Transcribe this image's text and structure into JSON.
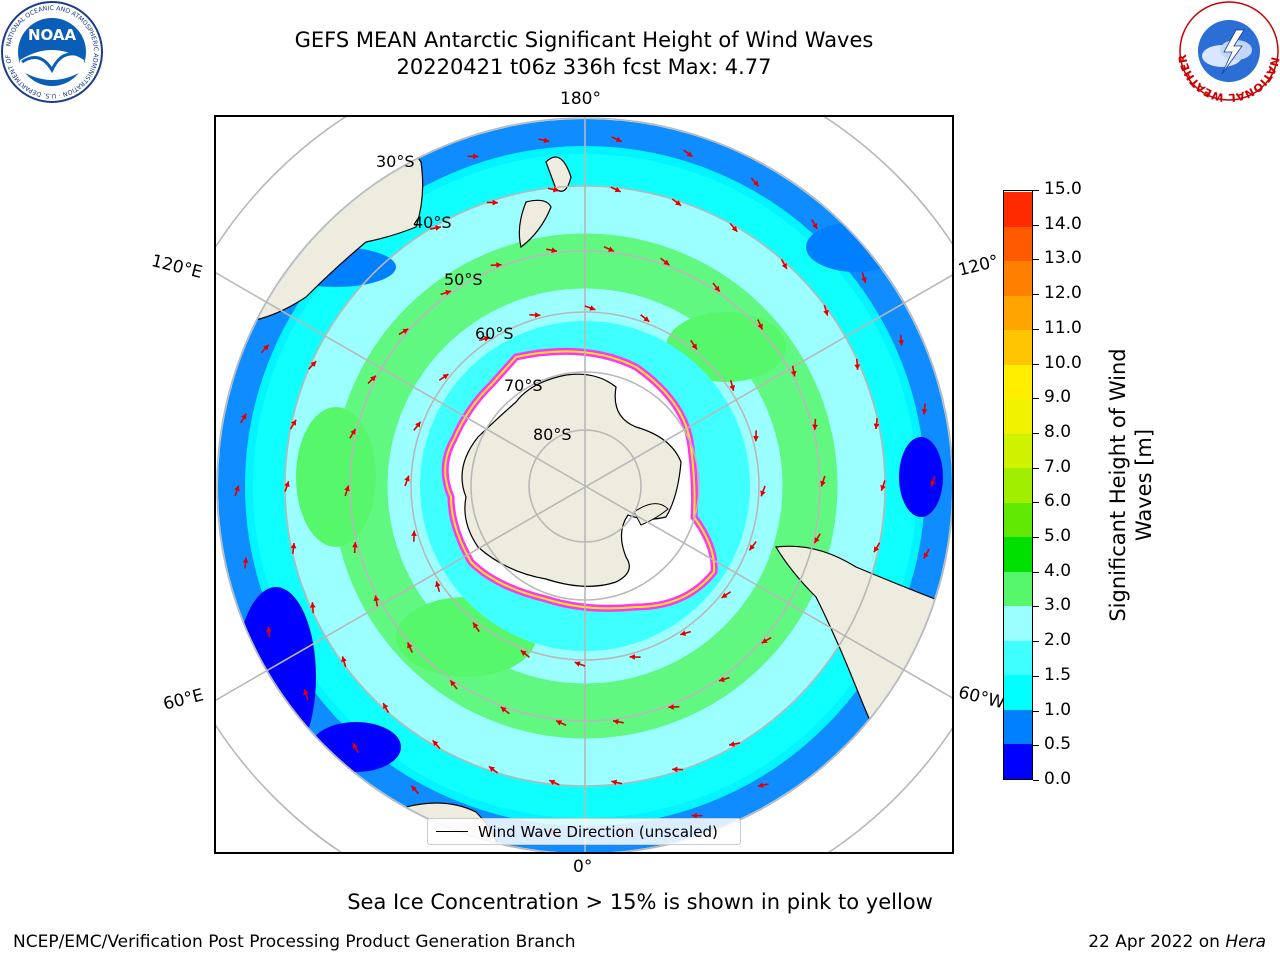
{
  "header": {
    "title_line1": "GEFS MEAN Antarctic Significant Height of Wind Waves",
    "title_line2": "20220421 t06z 336h fcst   Max: 4.77"
  },
  "logos": {
    "noaa": {
      "icon": "noaa-logo",
      "text": "NOAA",
      "ring_text": "NATIONAL OCEANIC AND ATMOSPHERIC ADMINISTRATION · U.S. DEPARTMENT OF COMMERCE"
    },
    "nws": {
      "icon": "nws-logo",
      "ring_text": "NATIONAL WEATHER SERVICE"
    }
  },
  "map": {
    "projection": "south-polar-stereographic",
    "longitude_labels": {
      "top": "180°",
      "bottom": "0°",
      "left_upper": "120°E",
      "right_upper": "120°",
      "left_lower": "60°E",
      "right_lower": "60°W"
    },
    "latitude_labels": [
      "30°S",
      "40°S",
      "50°S",
      "60°S",
      "70°S",
      "80°S"
    ],
    "legend_label": "Wind Wave Direction (unscaled)",
    "colors": {
      "land": "#eeecdf",
      "sea_ice": "#ffffff",
      "ice_edge": "#ff33ff",
      "arrow": "#e00000",
      "grid": "#b8b8b8"
    }
  },
  "colorbar": {
    "title": "Significant Height of Wind Waves [m]",
    "title_line1": "Significant Height of Wind",
    "title_line2": "Waves [m]",
    "tick_labels": [
      "0.0",
      "0.5",
      "1.0",
      "1.5",
      "2.0",
      "3.0",
      "4.0",
      "5.0",
      "6.0",
      "7.0",
      "8.0",
      "9.0",
      "10.0",
      "11.0",
      "12.0",
      "13.0",
      "14.0",
      "15.0"
    ],
    "colors": [
      "#0000ff",
      "#0080ff",
      "#00ffff",
      "#40ffff",
      "#9cffff",
      "#57f76c",
      "#00e000",
      "#60e800",
      "#a2ee00",
      "#cff200",
      "#f0f200",
      "#ffee00",
      "#ffc600",
      "#ffa400",
      "#ff8000",
      "#ff5a00",
      "#ff2a00"
    ]
  },
  "footer": {
    "note": "Sea Ice Concentration > 15% is shown in pink to yellow",
    "credit_left": "NCEP/EMC/Verification Post Processing Product Generation Branch",
    "credit_right_prefix": "22 Apr 2022 on ",
    "credit_right_host": "Hera"
  }
}
